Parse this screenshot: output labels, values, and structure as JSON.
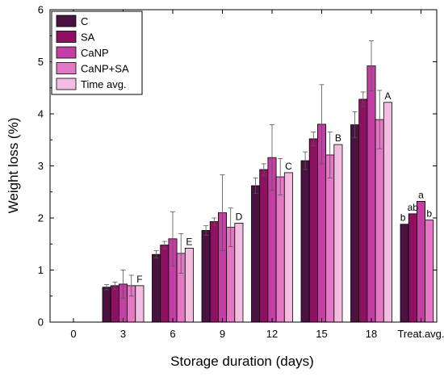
{
  "chart_data": {
    "type": "bar",
    "xlabel": "Storage duration (days)",
    "ylabel": "Weight loss (%)",
    "ylim": [
      0,
      6
    ],
    "yticks": [
      "0",
      "1",
      "2",
      "3",
      "4",
      "5",
      "6"
    ],
    "categories": [
      "0",
      "3",
      "6",
      "9",
      "12",
      "15",
      "18",
      "Treat.avg."
    ],
    "series": [
      {
        "name": "C",
        "color": "#4a1240",
        "values": [
          null,
          0.67,
          1.3,
          1.76,
          2.62,
          3.1,
          3.79,
          1.88
        ],
        "errors": [
          null,
          0.05,
          0.07,
          0.09,
          0.15,
          0.17,
          0.25,
          0
        ]
      },
      {
        "name": "SA",
        "color": "#8e1060",
        "values": [
          null,
          0.7,
          1.48,
          1.93,
          2.93,
          3.52,
          4.28,
          2.08
        ],
        "errors": [
          null,
          0.07,
          0.07,
          0.07,
          0.11,
          0.13,
          0.14,
          0
        ]
      },
      {
        "name": "CaNP",
        "color": "#c43fa4",
        "values": [
          null,
          0.73,
          1.6,
          2.1,
          3.16,
          3.8,
          4.92,
          2.32
        ],
        "errors": [
          null,
          0.27,
          0.52,
          0.73,
          0.63,
          0.76,
          0.48,
          0
        ]
      },
      {
        "name": "CaNP+SA",
        "color": "#e478c4",
        "values": [
          null,
          0.7,
          1.32,
          1.82,
          2.79,
          3.21,
          3.89,
          1.96
        ],
        "errors": [
          null,
          0.2,
          0.38,
          0.37,
          0.35,
          0.44,
          0.56,
          0
        ]
      },
      {
        "name": "Time avg.",
        "color": "#f3bde0",
        "values": [
          null,
          0.7,
          1.42,
          1.9,
          2.87,
          3.41,
          4.22,
          null
        ],
        "errors": [
          null,
          0,
          0,
          0,
          0,
          0,
          0,
          null
        ]
      }
    ],
    "letters": [
      {
        "category_index": 1,
        "series_index": 4,
        "text": "F"
      },
      {
        "category_index": 2,
        "series_index": 4,
        "text": "E"
      },
      {
        "category_index": 3,
        "series_index": 4,
        "text": "D"
      },
      {
        "category_index": 4,
        "series_index": 4,
        "text": "C"
      },
      {
        "category_index": 5,
        "series_index": 4,
        "text": "B"
      },
      {
        "category_index": 6,
        "series_index": 4,
        "text": "A"
      },
      {
        "category_index": 7,
        "series_index": 0,
        "text": "b"
      },
      {
        "category_index": 7,
        "series_index": 1,
        "text": "ab"
      },
      {
        "category_index": 7,
        "series_index": 2,
        "text": "a"
      },
      {
        "category_index": 7,
        "series_index": 3,
        "text": "b"
      }
    ],
    "legend_position": "top-left",
    "grid": false
  }
}
